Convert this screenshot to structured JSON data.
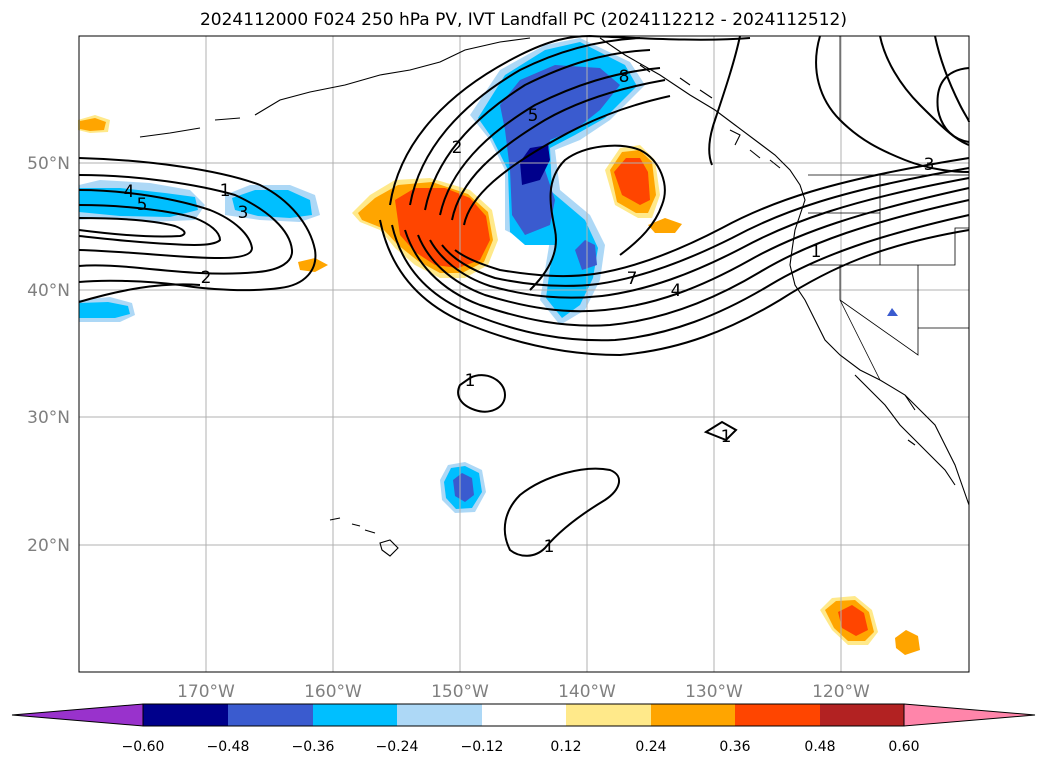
{
  "title": "2024112000 F024 250 hPa PV, IVT Landfall PC (2024112212 - 2024112512)",
  "map": {
    "projection": "PlateCarree",
    "lon_range": [
      -180,
      -110
    ],
    "lat_range": [
      10,
      60
    ],
    "lat_ticks": [
      {
        "value": 50,
        "label": "50°N"
      },
      {
        "value": 40,
        "label": "40°N"
      },
      {
        "value": 30,
        "label": "30°N"
      },
      {
        "value": 20,
        "label": "20°N"
      }
    ],
    "lon_ticks": [
      {
        "value": -170,
        "label": "170°W"
      },
      {
        "value": -160,
        "label": "160°W"
      },
      {
        "value": -150,
        "label": "150°W"
      },
      {
        "value": -140,
        "label": "140°W"
      },
      {
        "value": -130,
        "label": "130°W"
      },
      {
        "value": -120,
        "label": "120°W"
      }
    ],
    "gridlines": true,
    "contour_labels": [
      "1",
      "2",
      "3",
      "4",
      "5",
      "7",
      "8",
      "1",
      "1",
      "1",
      "1",
      "2",
      "3",
      "4",
      "5",
      "3",
      "1"
    ]
  },
  "colorbar": {
    "orientation": "horizontal",
    "extend": "both",
    "ticks": [
      "−0.60",
      "−0.48",
      "−0.36",
      "−0.24",
      "−0.12",
      "0.12",
      "0.24",
      "0.36",
      "0.48",
      "0.60"
    ],
    "colors": {
      "under": "#9932cc",
      "b1": "#00008b",
      "b2": "#3a5bcf",
      "b3": "#00bfff",
      "b4": "#add8f6",
      "b5": "#ffffff",
      "b6": "#ffe98a",
      "b7": "#ffa500",
      "b8": "#ff4500",
      "b9": "#b22222",
      "over": "#ff85aa"
    }
  }
}
